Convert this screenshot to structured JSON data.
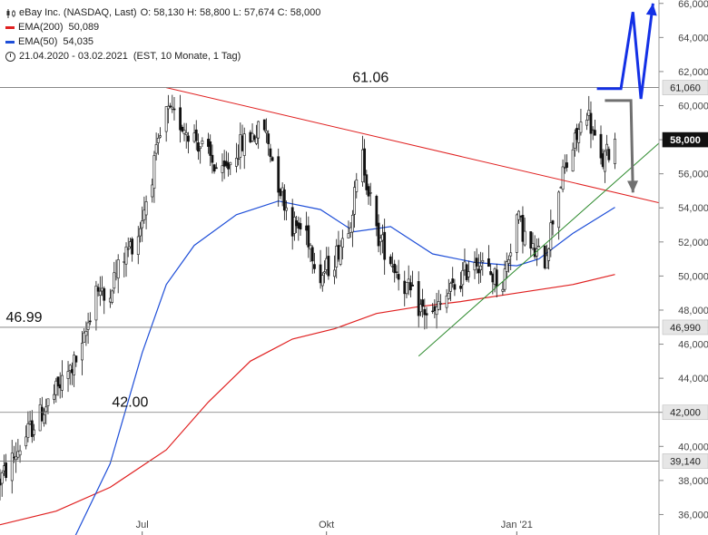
{
  "legend": {
    "instrument": "eBay Inc. (NASDAQ, Last)",
    "ohlc": "O: 58,130   H: 58,800   L: 57,674   C: 58,000",
    "ema200_label": "EMA(200)",
    "ema200_value": "50,089",
    "ema50_label": "EMA(50)",
    "ema50_value": "54,035",
    "period": "21.04.2020 - 03.02.2021",
    "period_info": "(EST, 10 Monate, 1 Tag)",
    "icon_ohlc": "candlestick-icon",
    "icon_period": "clock-icon"
  },
  "colors": {
    "ema200": "#e02020",
    "ema50": "#1f4fd8",
    "trendline_resistance": "#e02020",
    "trendline_support": "#2e8b2e",
    "arrow_up": "#1330e6",
    "arrow_down": "#707070",
    "candle": "#111111",
    "last_badge": "#111111"
  },
  "chart_data": {
    "type": "candlestick",
    "x_ticks": [
      "Jul",
      "Okt",
      "Jan '21"
    ],
    "x_tick_dates": [
      "2020-07-01",
      "2020-10-01",
      "2021-01-04"
    ],
    "x_range": [
      "2020-04-21",
      "2021-03-16"
    ],
    "ylim": [
      34.8,
      66.2
    ],
    "y_ticks": [
      "36,000",
      "38,000",
      "40,000",
      "42,000",
      "44,000",
      "46,000",
      "48,000",
      "50,000",
      "52,000",
      "54,000",
      "56,000",
      "58,000",
      "60,000",
      "62,000",
      "64,000",
      "66,000"
    ],
    "y_tick_values": [
      36,
      38,
      40,
      42,
      44,
      46,
      48,
      50,
      52,
      54,
      56,
      58,
      60,
      62,
      64,
      66
    ],
    "price_path": [
      [
        "2020-04-21",
        38.0
      ],
      [
        "2020-05-05",
        40.8
      ],
      [
        "2020-05-19",
        43.2
      ],
      [
        "2020-06-01",
        45.6
      ],
      [
        "2020-06-08",
        49.5
      ],
      [
        "2020-06-12",
        48.6
      ],
      [
        "2020-06-22",
        51.2
      ],
      [
        "2020-06-29",
        52.5
      ],
      [
        "2020-07-06",
        56.0
      ],
      [
        "2020-07-13",
        59.6
      ],
      [
        "2020-07-20",
        59.0
      ],
      [
        "2020-07-27",
        58.2
      ],
      [
        "2020-08-03",
        57.0
      ],
      [
        "2020-08-10",
        55.8
      ],
      [
        "2020-08-17",
        57.4
      ],
      [
        "2020-08-24",
        58.2
      ],
      [
        "2020-08-31",
        58.7
      ],
      [
        "2020-09-07",
        55.5
      ],
      [
        "2020-09-14",
        53.0
      ],
      [
        "2020-09-21",
        52.6
      ],
      [
        "2020-09-28",
        50.0
      ],
      [
        "2020-10-05",
        51.0
      ],
      [
        "2020-10-13",
        53.5
      ],
      [
        "2020-10-19",
        57.0
      ],
      [
        "2020-10-26",
        52.5
      ],
      [
        "2020-11-02",
        51.0
      ],
      [
        "2020-11-09",
        49.5
      ],
      [
        "2020-11-16",
        48.2
      ],
      [
        "2020-11-23",
        47.6
      ],
      [
        "2020-11-30",
        48.8
      ],
      [
        "2020-12-07",
        49.8
      ],
      [
        "2020-12-14",
        51.1
      ],
      [
        "2020-12-21",
        50.2
      ],
      [
        "2020-12-28",
        49.6
      ],
      [
        "2021-01-04",
        53.5
      ],
      [
        "2021-01-11",
        51.5
      ],
      [
        "2021-01-18",
        51.0
      ],
      [
        "2021-01-25",
        55.2
      ],
      [
        "2021-02-01",
        57.5
      ],
      [
        "2021-02-08",
        59.8
      ],
      [
        "2021-02-15",
        56.5
      ],
      [
        "2021-02-22",
        58.0
      ]
    ],
    "ema50": [
      [
        "2020-05-28",
        34.6
      ],
      [
        "2020-06-15",
        39.0
      ],
      [
        "2020-07-01",
        45.5
      ],
      [
        "2020-07-13",
        49.5
      ],
      [
        "2020-07-27",
        51.8
      ],
      [
        "2020-08-17",
        53.6
      ],
      [
        "2020-09-07",
        54.4
      ],
      [
        "2020-09-28",
        53.9
      ],
      [
        "2020-10-15",
        52.6
      ],
      [
        "2020-11-02",
        52.9
      ],
      [
        "2020-11-23",
        51.3
      ],
      [
        "2020-12-14",
        50.8
      ],
      [
        "2021-01-04",
        50.6
      ],
      [
        "2021-01-15",
        51.0
      ],
      [
        "2021-02-01",
        52.5
      ],
      [
        "2021-02-22",
        54.035
      ]
    ],
    "ema200": [
      [
        "2020-04-21",
        35.4
      ],
      [
        "2020-05-19",
        36.2
      ],
      [
        "2020-06-15",
        37.6
      ],
      [
        "2020-07-13",
        39.8
      ],
      [
        "2020-08-03",
        42.6
      ],
      [
        "2020-08-24",
        45.0
      ],
      [
        "2020-09-14",
        46.3
      ],
      [
        "2020-10-05",
        46.9
      ],
      [
        "2020-10-26",
        47.8
      ],
      [
        "2020-11-16",
        48.2
      ],
      [
        "2020-12-07",
        48.5
      ],
      [
        "2021-01-04",
        49.0
      ],
      [
        "2021-02-01",
        49.5
      ],
      [
        "2021-02-22",
        50.089
      ]
    ],
    "trendlines": [
      {
        "role": "resistance",
        "from": [
          "2020-07-13",
          61.06
        ],
        "to": [
          "2021-03-16",
          54.3
        ]
      },
      {
        "role": "support",
        "from": [
          "2020-11-16",
          45.3
        ],
        "to": [
          "2021-03-16",
          57.8
        ]
      }
    ],
    "horizontal_levels": [
      {
        "value": 61.06,
        "badge": "61,060",
        "label": "61.06",
        "label_date": "2020-10-23"
      },
      {
        "value": 46.99,
        "badge": "46,990",
        "label": "46.99",
        "label_date": "2020-05-03"
      },
      {
        "value": 42.0,
        "badge": "42,000",
        "label": "42.00",
        "label_date": "2020-06-25"
      },
      {
        "value": 39.14,
        "badge": "39,140",
        "label": "",
        "label_date": ""
      }
    ],
    "last_price": {
      "value": 58.0,
      "badge": "58,000"
    },
    "scenario_arrows": [
      {
        "role": "up",
        "points": [
          [
            "2021-02-13",
            61.0
          ],
          [
            "2021-02-25",
            61.0
          ],
          [
            "2021-03-03",
            65.5
          ],
          [
            "2021-03-07",
            60.4
          ],
          [
            "2021-03-13",
            66.0
          ]
        ]
      },
      {
        "role": "down",
        "points": [
          [
            "2021-02-17",
            60.3
          ],
          [
            "2021-03-02",
            60.3
          ],
          [
            "2021-03-03",
            54.9
          ]
        ]
      }
    ]
  }
}
